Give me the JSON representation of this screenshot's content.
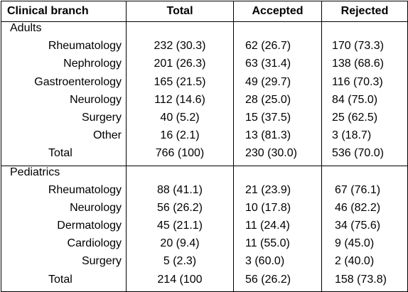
{
  "table": {
    "headers": [
      "Clinical branch",
      "Total",
      "Accepted",
      "Rejected"
    ],
    "sections": [
      {
        "name": "Adults",
        "rows": [
          {
            "branch": "Rheumatology",
            "total": "232 (30.3)",
            "accepted": "62 (26.7)",
            "rejected": "170 (73.3)"
          },
          {
            "branch": "Nephrology",
            "total": "201 (26.3)",
            "accepted": "63 (31.4)",
            "rejected": "138 (68.6)"
          },
          {
            "branch": "Gastroenterology",
            "total": "165 (21.5)",
            "accepted": "49 (29.7)",
            "rejected": "116 (70.3)"
          },
          {
            "branch": "Neurology",
            "total": "112 (14.6)",
            "accepted": "28 (25.0)",
            "rejected": "84 (75.0)"
          },
          {
            "branch": "Surgery",
            "total": "40 (5.2)",
            "accepted": "15 (37.5)",
            "rejected": "25 (62.5)"
          },
          {
            "branch": "Other",
            "total": "16 (2.1)",
            "accepted": "13 (81.3)",
            "rejected": "3 (18.7)"
          },
          {
            "branch": "Total",
            "total": "766 (100)",
            "accepted": "230 (30.0)",
            "rejected": "536 (70.0)"
          }
        ]
      },
      {
        "name": "Pediatrics",
        "rows": [
          {
            "branch": "Rheumatology",
            "total": "88 (41.1)",
            "accepted": "21 (23.9)",
            "rejected": "67 (76.1)"
          },
          {
            "branch": "Neurology",
            "total": "56 (26.2)",
            "accepted": "10 (17.8)",
            "rejected": "46 (82.2)"
          },
          {
            "branch": "Dermatology",
            "total": "45 (21.1)",
            "accepted": "11 (24.4)",
            "rejected": "34 (75.6)"
          },
          {
            "branch": "Cardiology",
            "total": "20 (9.4)",
            "accepted": "11 (55.0)",
            "rejected": "9 (45.0)"
          },
          {
            "branch": "Surgery",
            "total": "5 (2.3)",
            "accepted": "3 (60.0)",
            "rejected": "2 (40.0)"
          },
          {
            "branch": "Total",
            "total": "214 (100",
            "accepted": "56 (26.2)",
            "rejected": "158 (73.8)"
          }
        ]
      }
    ]
  }
}
